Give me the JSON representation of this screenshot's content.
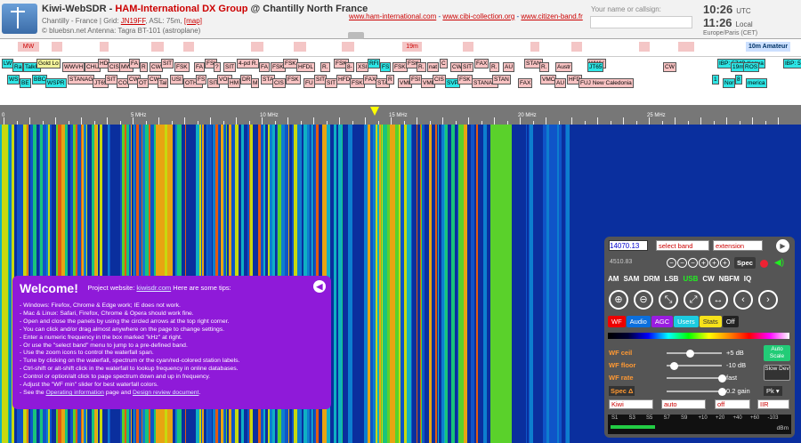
{
  "header": {
    "site_name": "Kiwi-WebSDR",
    "separator": " - ",
    "group_name": "HAM-International DX Group",
    "location_suffix": " @ Chantilly North France",
    "info_prefix": "Chantilly - France | Grid: ",
    "grid": "JN19FF",
    "asl": ", ASL: 75m, ",
    "map_link": "[map]",
    "credit": "© bluebsn.net",
    "antenna": "Antenna: Tagra BT-101 (astroplane)",
    "links": [
      "www.ham-international.com",
      "www.cibi-collection.org",
      "www.citizen-band.fr"
    ],
    "link_sep": " - ",
    "callsign_prompt": "Your name or callsign:",
    "utc_time": "10:26",
    "utc_label": "UTC",
    "local_time": "11:26",
    "local_label": "Local",
    "timezone": "Europe/Paris (CET)"
  },
  "band_bar": [
    "MW",
    "19m",
    "10m Amateur"
  ],
  "scale": {
    "labels": [
      "0",
      "5 MHz",
      "10 MHz",
      "15 MHz",
      "20 MHz",
      "25 MHz"
    ]
  },
  "station_labels_row1": [
    "LW",
    "Ra",
    "TalkR",
    "Gold Lo",
    "WWVH",
    "CHU",
    "HD",
    "CIS",
    "MW",
    "FA",
    "R",
    "CW",
    "SIT",
    "FSK",
    "FA",
    "FSI",
    "?",
    "SIT",
    "4-pd R.",
    "FA",
    "FSK",
    "FSK",
    "HFDL",
    "R.",
    "FSK",
    "8-",
    "XSI",
    "RFI",
    "FS",
    "FSK",
    "FSK",
    "R.",
    "nat",
    "C",
    "CW",
    "SIT",
    "FAX",
    "R.",
    "AU",
    "STAN",
    "R.",
    "Austr",
    "WWV",
    "JT65",
    "CW",
    "IBP: 5Z4B Kenya",
    "19m",
    "ROS",
    "IBP: 5Z4B Kenya"
  ],
  "station_labels_row2": [
    "WS",
    "BE",
    "BBC",
    "WSPR",
    "STANAG",
    "JT65",
    "SIT",
    "CO",
    "CW",
    "OT",
    "CW",
    "Tal",
    "USI",
    "OTHR",
    "FS",
    "SIT",
    "VOL",
    "HM",
    "DR",
    "M",
    "STA",
    "CIS",
    "FSK",
    "FU",
    "SIT",
    "SIT",
    "HFD",
    "FSK",
    "FAX",
    "STA",
    "R",
    "VMI",
    "FSI",
    "VMI",
    "CIS",
    "SVP",
    "FSK",
    "STANAG",
    "STAN",
    "FAX",
    "VMC",
    "AU",
    "HFD",
    "FUJ New Caledonia",
    "1",
    "Nor",
    "8",
    "merica"
  ],
  "welcome": {
    "title": "Welcome!",
    "project_prefix": "Project website: ",
    "project_link": "kiwisdr.com",
    "tips_suffix": "   Here are some tips:",
    "tips": [
      "Windows: Firefox, Chrome & Edge work; IE does not work.",
      "Mac & Linux: Safari, Firefox, Chrome & Opera should work fine.",
      "Open and close the panels by using the circled arrows at the top right corner.",
      "You can click and/or drag almost anywhere on the page to change settings.",
      "Enter a numeric frequency in the box marked \"kHz\" at right.",
      "Or use the \"select band\" menu to jump to a pre-defined band.",
      "Use the zoom icons to control the waterfall span.",
      "Tune by clicking on the waterfall, spectrum or the cyan/red-colored station labels.",
      "Ctrl-shift or alt-shift click in the waterfall to lookup frequency in online databases.",
      "Control or option/alt click to page spectrum down and up in frequency.",
      "Adjust the \"WF min\" slider for best waterfall colors."
    ],
    "last_prefix": "See the ",
    "op_info": "Operating information",
    "last_mid": " page and ",
    "design_doc": "Design review document",
    "last_suffix": "."
  },
  "control": {
    "frequency": "14070.13",
    "select_band": "select band",
    "extension": "extension",
    "passband_info": "4510.83",
    "spec_label": "Spec",
    "modes": [
      "AM",
      "SAM",
      "DRM",
      "LSB",
      "USB",
      "CW",
      "NBFM",
      "IQ"
    ],
    "active_mode": "USB",
    "tabs": [
      "WF",
      "Audio",
      "AGC",
      "Users",
      "Stats",
      "Off"
    ],
    "wf_ceil_label": "WF ceil",
    "wf_ceil_value": "+5 dB",
    "wf_floor_label": "WF floor",
    "wf_floor_value": "-10 dB",
    "wf_rate_label": "WF rate",
    "wf_rate_value": "fast",
    "auto_scale": "Auto Scale",
    "slow_dev": "Slow Dev",
    "spec_delta_label": "Spec Δ",
    "spec_delta_value": "0.2 gain",
    "pk_label": "Pk",
    "drop_kiwi": "Kiwi",
    "drop_auto": "auto",
    "drop_off": "off",
    "drop_iir": "IIR",
    "smeter_labels": [
      "S1",
      "S3",
      "S5",
      "S7",
      "S9",
      "+10",
      "+20",
      "+40",
      "+60",
      "-103"
    ],
    "smeter_unit": "dBm",
    "smeter_level": 0.28
  },
  "colors": {
    "welcome_bg": "#8f1ad9",
    "active_mode": "#22ee22",
    "accent": "#c00000"
  }
}
